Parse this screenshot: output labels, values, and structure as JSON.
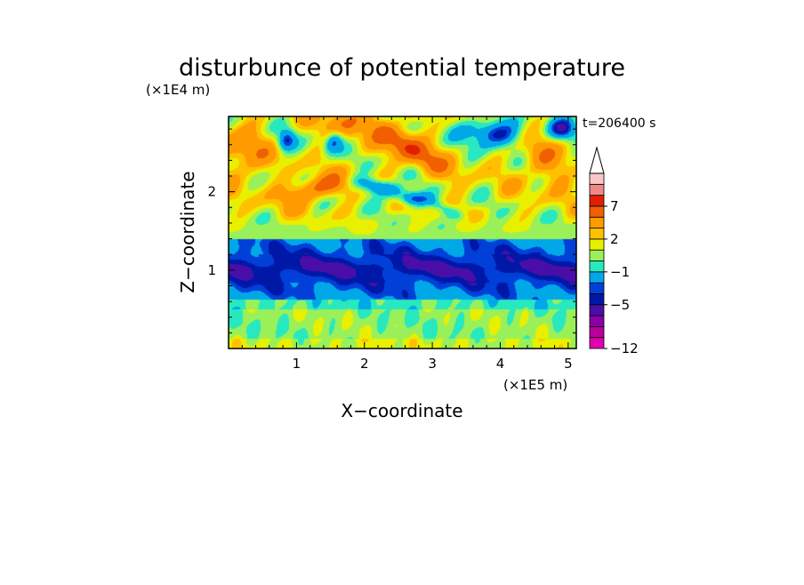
{
  "chart_data": {
    "type": "heatmap",
    "title": "disturbunce of potential temperature",
    "xlabel": "X−coordinate",
    "ylabel": "Z−coordinate",
    "x_unit": "(×1E5 m)",
    "y_unit": "(×1E4 m)",
    "time_label": "t=206400 s",
    "xlim": [
      0,
      5.12
    ],
    "ylim": [
      0,
      2.96
    ],
    "x_ticks": [
      {
        "value": 1,
        "label": "1"
      },
      {
        "value": 2,
        "label": "2"
      },
      {
        "value": 3,
        "label": "3"
      },
      {
        "value": 4,
        "label": "4"
      },
      {
        "value": 5,
        "label": "5"
      }
    ],
    "y_ticks": [
      {
        "value": 1,
        "label": "1"
      },
      {
        "value": 2,
        "label": "2"
      }
    ],
    "colorbar": {
      "levels": [
        -12,
        -11,
        -9,
        -7,
        -5,
        -4,
        -3,
        -1,
        0,
        1,
        2,
        3,
        5,
        7,
        9,
        11
      ],
      "colors": [
        "#e000b0",
        "#b8009a",
        "#8a00a6",
        "#4a0ea8",
        "#0018a8",
        "#0040d8",
        "#00a8e8",
        "#28e8c0",
        "#9af058",
        "#e8f000",
        "#ffc000",
        "#ff9a00",
        "#f06000",
        "#e02000",
        "#f08888",
        "#f8c8c8"
      ],
      "labels": [
        {
          "value": -12,
          "label": "−12"
        },
        {
          "value": -5,
          "label": "−5"
        },
        {
          "value": -1,
          "label": "−1"
        },
        {
          "value": 2,
          "label": "2"
        },
        {
          "value": 7,
          "label": "7"
        }
      ],
      "extend": "max"
    }
  }
}
